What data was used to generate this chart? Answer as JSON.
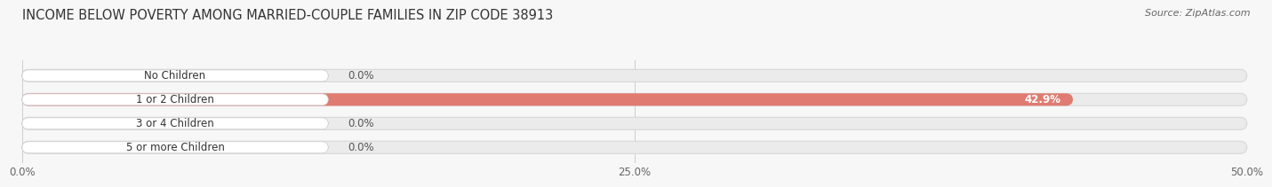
{
  "title": "INCOME BELOW POVERTY AMONG MARRIED-COUPLE FAMILIES IN ZIP CODE 38913",
  "source": "Source: ZipAtlas.com",
  "categories": [
    "No Children",
    "1 or 2 Children",
    "3 or 4 Children",
    "5 or more Children"
  ],
  "values": [
    0.0,
    42.9,
    0.0,
    0.0
  ],
  "bar_colors": [
    "#f5c79e",
    "#e07b72",
    "#a8bfe0",
    "#c8aad4"
  ],
  "background_color": "#f7f7f7",
  "bar_bg_color": "#e8e8e8",
  "xlim": [
    0,
    50
  ],
  "xticks": [
    0,
    25,
    50
  ],
  "xtick_labels": [
    "0.0%",
    "25.0%",
    "50.0%"
  ],
  "title_fontsize": 10.5,
  "label_fontsize": 8.5,
  "value_fontsize": 8.5,
  "source_fontsize": 8
}
